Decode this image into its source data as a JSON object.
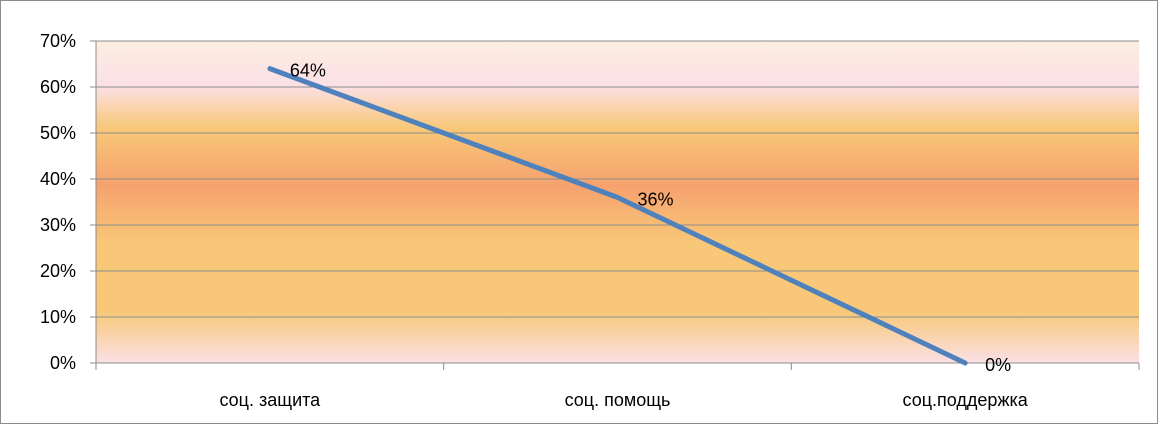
{
  "chart_data": {
    "type": "line",
    "title": "",
    "xlabel": "",
    "ylabel": "",
    "categories": [
      "соц. защита",
      "соц. помощь",
      "соц.поддержка"
    ],
    "series": [
      {
        "values": [
          64,
          36,
          0
        ],
        "labels": [
          "64%",
          "36%",
          "0%"
        ]
      }
    ],
    "ylim": [
      0,
      70
    ],
    "yticks": [
      "0%",
      "10%",
      "20%",
      "30%",
      "40%",
      "50%",
      "60%",
      "70%"
    ],
    "grid": true,
    "legend": "none",
    "colors": {
      "line": "#4f81bd",
      "grid": "#8c8c8c",
      "band_edge": "#fdeee0",
      "band_pink": "#fbe0e6",
      "band_gold": "#f8c878",
      "band_orange": "#f6a26e"
    }
  }
}
